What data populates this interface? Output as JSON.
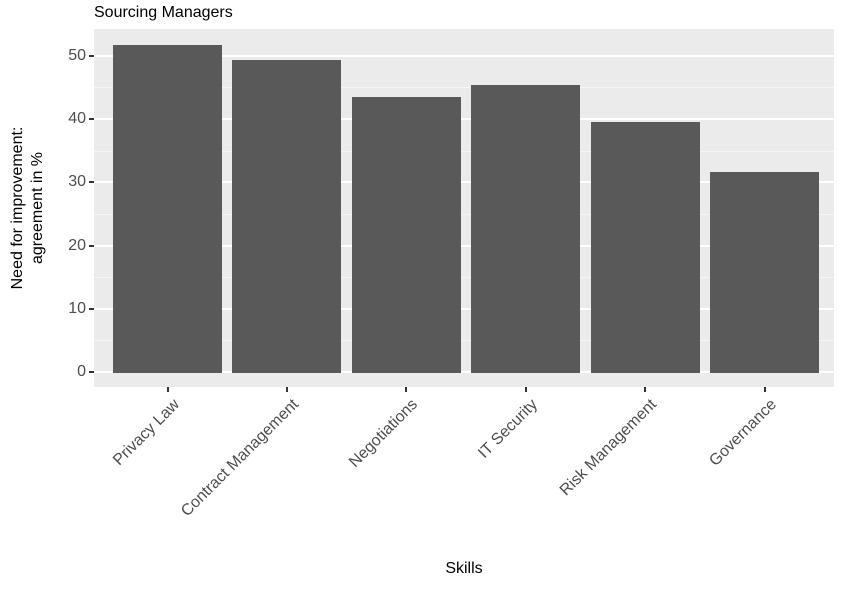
{
  "title": "Sourcing Managers",
  "axes": {
    "y_title_line1": "Need for improvement:",
    "y_title_line2": "agreement in %",
    "x_title": "Skills"
  },
  "colors": {
    "bar_fill": "#595959",
    "panel_background": "#EBEBEB",
    "grid_major": "#FFFFFF",
    "grid_minor": "#F5F5F5",
    "axis_text": "#4D4D4D",
    "title_text": "#000000",
    "tick_mark": "#333333"
  },
  "chart_data": {
    "type": "bar",
    "title": "Sourcing Managers",
    "xlabel": "Skills",
    "ylabel": "Need for improvement: agreement in %",
    "categories": [
      "Privacy Law",
      "Contract Management",
      "Negotiations",
      "IT Security",
      "Risk Management",
      "Governance"
    ],
    "values": [
      51.7,
      49.4,
      43.5,
      45.3,
      39.5,
      31.6
    ],
    "yticks": [
      0,
      10,
      20,
      30,
      40,
      50
    ],
    "yticks_minor": [
      5,
      15,
      25,
      35,
      45
    ],
    "ylim": [
      0,
      54.5
    ],
    "grid": "white major and minor horizontal gridlines on gray panel",
    "legend": "none",
    "bar_orientation": "vertical"
  }
}
